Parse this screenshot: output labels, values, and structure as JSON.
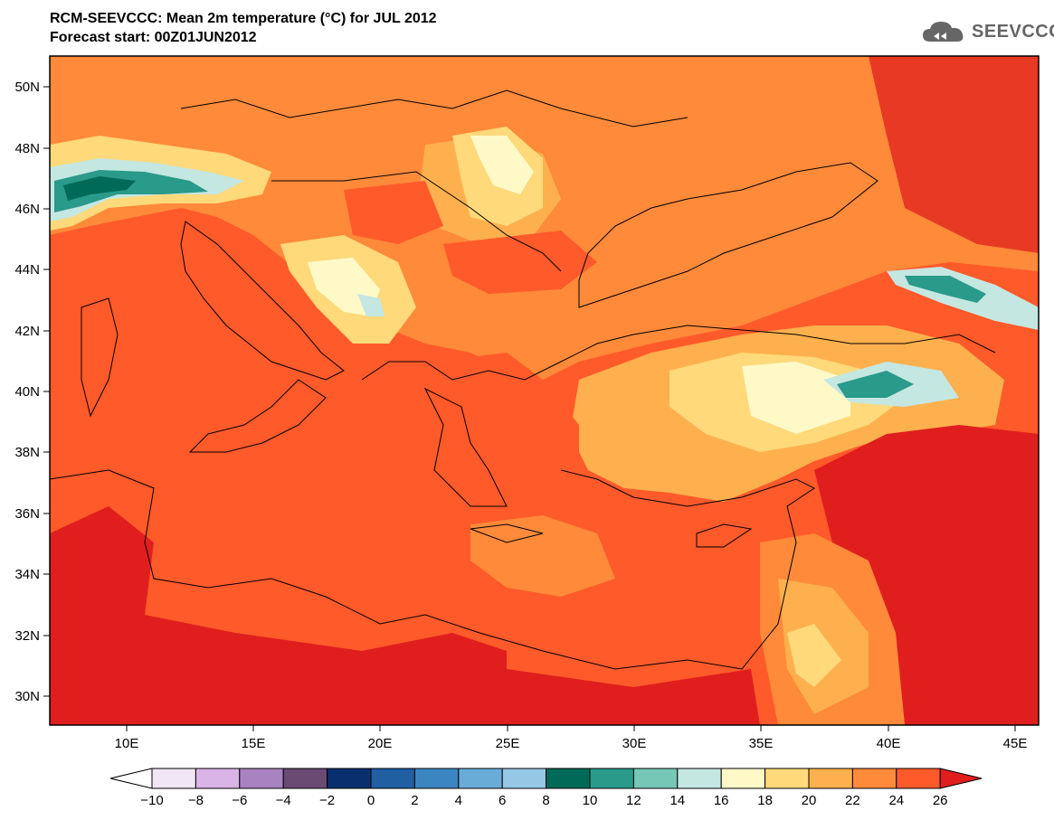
{
  "header": {
    "title_line1": "RCM-SEEVCCC: Mean 2m temperature (°C) for JUL 2012",
    "title_line2": "Forecast start: 00Z01JUN2012",
    "logo_text": "SEEVCCC"
  },
  "map": {
    "lat_labels": [
      "50N",
      "48N",
      "46N",
      "44N",
      "42N",
      "40N",
      "38N",
      "36N",
      "34N",
      "32N",
      "30N"
    ],
    "lon_labels": [
      "10E",
      "15E",
      "20E",
      "25E",
      "30E",
      "35E",
      "40E",
      "45E"
    ]
  },
  "colorbar": {
    "labels": [
      "−10",
      "−8",
      "−6",
      "−4",
      "−2",
      "0",
      "2",
      "4",
      "6",
      "8",
      "10",
      "12",
      "14",
      "16",
      "18",
      "20",
      "22",
      "24",
      "26"
    ],
    "colors": [
      "#ffffff",
      "#f1e6f6",
      "#d9b4e6",
      "#a982c2",
      "#6a4a73",
      "#0a2f6e",
      "#1f5fa2",
      "#3b86c0",
      "#6aacd8",
      "#96c8e6",
      "#006a58",
      "#2a9a8a",
      "#77c7b7",
      "#c4e7e2",
      "#fff9c8",
      "#ffd97a",
      "#ffb04e",
      "#ff8a3a",
      "#ff5a2a",
      "#e01e1e"
    ]
  }
}
